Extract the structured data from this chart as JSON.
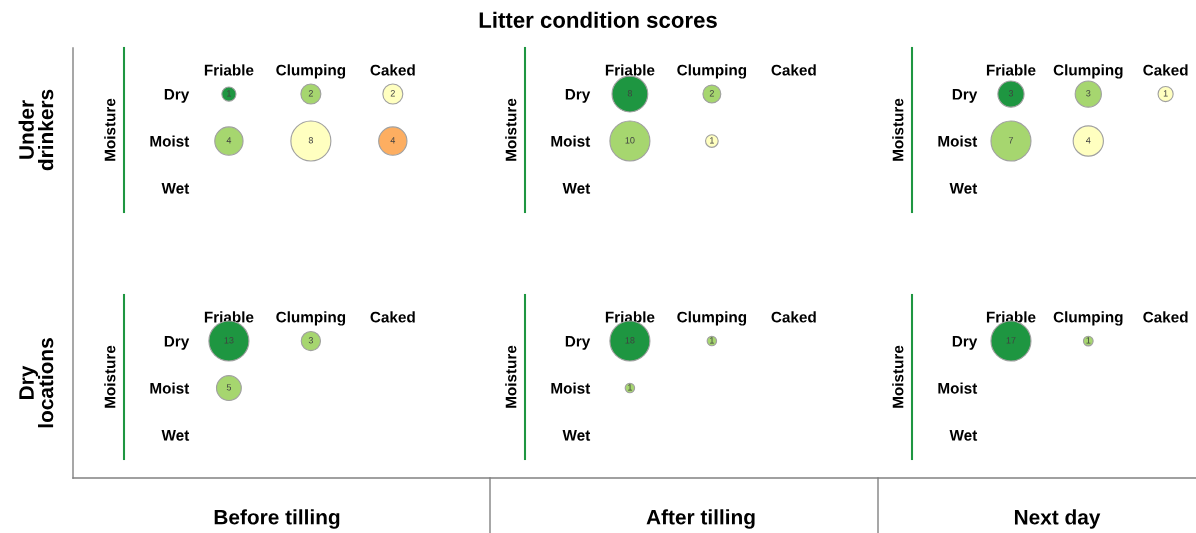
{
  "chart_data": [
    {
      "type": "other",
      "title": "Litter condition scores",
      "annotations": [
        "Under\ndrinkers",
        "Dry\nlocations",
        "Before tilling",
        "After tilling",
        "Next day"
      ]
    },
    {
      "type": "other",
      "ylabel": "Moisture",
      "categories": [
        "Friable",
        "Clumping",
        "Caked"
      ],
      "y_categories": [
        "Dry",
        "Moist",
        "Wet"
      ],
      "data_labels": true,
      "series": [
        {
          "values": [
            1,
            2,
            2
          ],
          "colors": [
            "#1e9641",
            "#a6d66f",
            "#ffffc0"
          ]
        },
        {
          "values": [
            4,
            8,
            4
          ],
          "colors": [
            "#a6d66f",
            "#ffffc0",
            "#fdae61"
          ]
        }
      ]
    },
    {
      "type": "other",
      "ylabel": "Moisture",
      "categories": [
        "Friable",
        "Clumping",
        "Caked"
      ],
      "y_categories": [
        "Dry",
        "Moist",
        "Wet"
      ],
      "data_labels": true,
      "series": [
        {
          "values": [
            8,
            2,
            null
          ],
          "colors": [
            "#1e9641",
            "#a6d66f",
            null
          ]
        },
        {
          "values": [
            10,
            1,
            null
          ],
          "colors": [
            "#a6d66f",
            "#ffffc0",
            null
          ]
        }
      ]
    },
    {
      "type": "other",
      "ylabel": "Moisture",
      "categories": [
        "Friable",
        "Clumping",
        "Caked"
      ],
      "y_categories": [
        "Dry",
        "Moist",
        "Wet"
      ],
      "data_labels": true,
      "series": [
        {
          "values": [
            3,
            3,
            1
          ],
          "colors": [
            "#1e9641",
            "#a6d66f",
            "#ffffc0"
          ]
        },
        {
          "values": [
            7,
            4,
            null
          ],
          "colors": [
            "#a6d66f",
            "#ffffc0",
            null
          ]
        }
      ]
    },
    {
      "type": "other",
      "ylabel": "Moisture",
      "categories": [
        "Friable",
        "Clumping",
        "Caked"
      ],
      "y_categories": [
        "Dry",
        "Moist",
        "Wet"
      ],
      "data_labels": true,
      "series": [
        {
          "values": [
            13,
            3,
            null
          ],
          "colors": [
            "#1e9641",
            "#a6d66f",
            null
          ]
        },
        {
          "values": [
            5,
            null,
            null
          ],
          "colors": [
            "#a6d66f",
            null,
            null
          ]
        }
      ]
    },
    {
      "type": "other",
      "ylabel": "Moisture",
      "categories": [
        "Friable",
        "Clumping",
        "Caked"
      ],
      "y_categories": [
        "Dry",
        "Moist",
        "Wet"
      ],
      "data_labels": true,
      "series": [
        {
          "values": [
            18,
            1,
            null
          ],
          "colors": [
            "#1e9641",
            "#a6d66f",
            null
          ]
        },
        {
          "values": [
            1,
            null,
            null
          ],
          "colors": [
            "#a6d66f",
            null,
            null
          ]
        }
      ]
    },
    {
      "type": "other",
      "ylabel": "Moisture",
      "categories": [
        "Friable",
        "Clumping",
        "Caked"
      ],
      "y_categories": [
        "Dry",
        "Moist",
        "Wet"
      ],
      "data_labels": true,
      "series": [
        {
          "values": [
            17,
            1,
            null
          ],
          "colors": [
            "#1e9641",
            "#a6d66f",
            null
          ]
        }
      ]
    }
  ]
}
